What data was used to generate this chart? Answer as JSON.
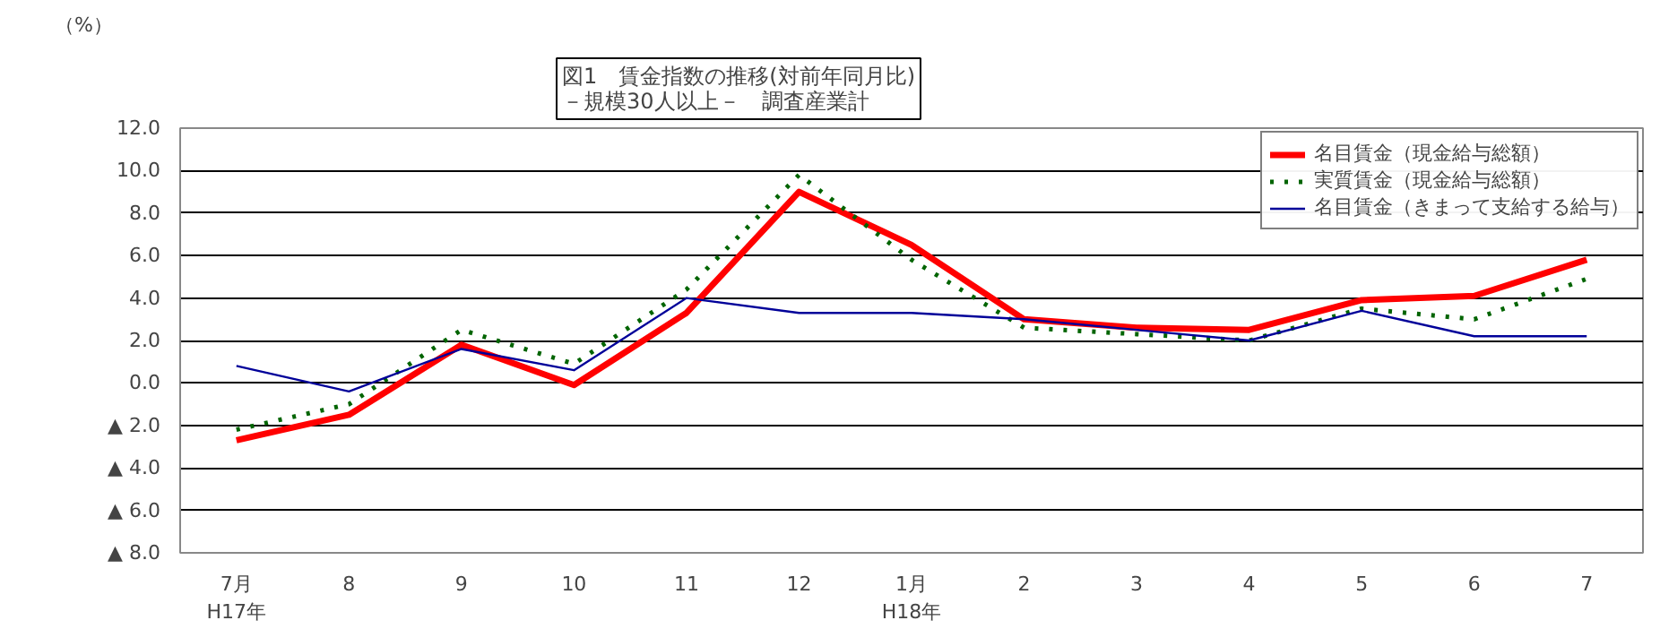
{
  "chart_data": {
    "type": "line",
    "title": "図1　賃金指数の推移(対前年同月比)\n－規模30人以上－　調査産業計",
    "ylabel": "（%）",
    "categories": [
      "7月\nH17年",
      "8",
      "9",
      "10",
      "11",
      "12",
      "1月\nH18年",
      "2",
      "3",
      "4",
      "5",
      "6",
      "7"
    ],
    "series": [
      {
        "name": "名目賃金（現金給与総額）",
        "color": "#ff0000",
        "line_style": "solid",
        "values": [
          -2.7,
          -1.5,
          1.8,
          -0.1,
          3.3,
          9.0,
          6.5,
          3.0,
          2.6,
          2.5,
          3.9,
          4.1,
          5.8
        ]
      },
      {
        "name": "実質賃金（現金給与総額）",
        "color": "#006400",
        "line_style": "dashed",
        "values": [
          -2.2,
          -1.0,
          2.5,
          0.9,
          4.4,
          9.8,
          5.8,
          2.6,
          2.3,
          2.0,
          3.5,
          3.0,
          4.9
        ]
      },
      {
        "name": "名目賃金（きまって支給する給与）",
        "color": "#000099",
        "line_style": "solid",
        "values": [
          0.8,
          -0.4,
          1.6,
          0.6,
          4.0,
          3.3,
          3.3,
          3.0,
          2.5,
          2.0,
          3.4,
          2.2,
          2.2
        ]
      }
    ],
    "ylim": [
      -8,
      12
    ],
    "yticks": [
      {
        "value": -8,
        "label": "▲ 8.0"
      },
      {
        "value": -6,
        "label": "▲ 6.0"
      },
      {
        "value": -4,
        "label": "▲ 4.0"
      },
      {
        "value": -2,
        "label": "▲ 2.0"
      },
      {
        "value": 0,
        "label": "0.0"
      },
      {
        "value": 2,
        "label": "2.0"
      },
      {
        "value": 4,
        "label": "4.0"
      },
      {
        "value": 6,
        "label": "6.0"
      },
      {
        "value": 8,
        "label": "8.0"
      },
      {
        "value": 10,
        "label": "10.0"
      },
      {
        "value": 12,
        "label": "12.0"
      }
    ],
    "grid": "y",
    "legend": "top right",
    "marker": "none"
  }
}
